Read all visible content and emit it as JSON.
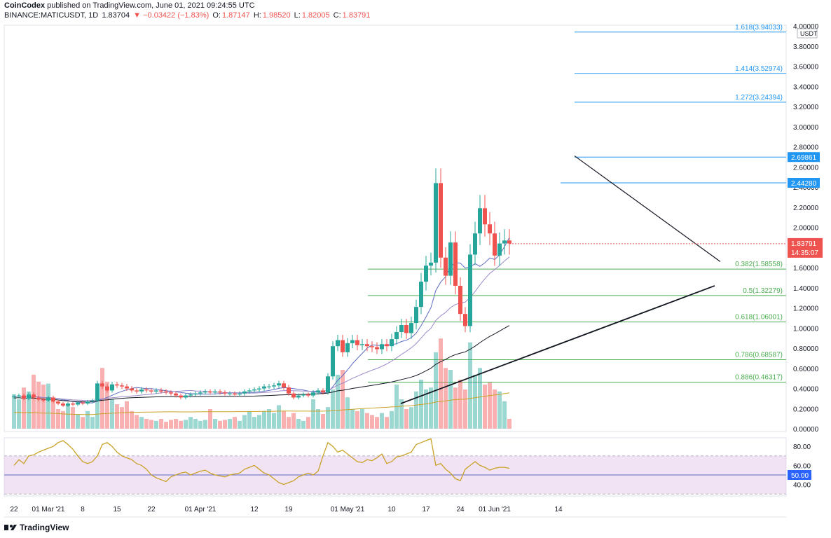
{
  "header": {
    "publisher": "CoinCodex",
    "published_text": "published on TradingView.com, June 01, 2021 09:24:55 UTC",
    "symbol": "BINANCE:MATICUSDT, 1D",
    "last": "1.83704",
    "change": "▼ −0.03422 (−1.83%)",
    "o_label": "O:",
    "o": "1.87147",
    "h_label": "H:",
    "h": "1.98520",
    "l_label": "L:",
    "l": "1.82005",
    "c_label": "C:",
    "c": "1.83791"
  },
  "footer": {
    "brand": "TradingView"
  },
  "colors": {
    "up": "#26a69a",
    "down": "#ef5350",
    "fib_blue": "#2196f3",
    "fib_green": "#4caf50",
    "rsi": "#c9a227",
    "rsi_band": "#e1bee7",
    "ma_short": "#5c6bc0",
    "ma_long": "#9c89c9"
  },
  "chart_data": {
    "type": "candlestick",
    "price_unit": "USDT",
    "y_ticks": [
      "4.00000",
      "3.80000",
      "3.60000",
      "3.40000",
      "3.20000",
      "3.00000",
      "2.80000",
      "2.60000",
      "2.40000",
      "2.20000",
      "2.00000",
      "1.80000",
      "1.60000",
      "1.40000",
      "1.20000",
      "1.00000",
      "0.80000",
      "0.60000",
      "0.40000",
      "0.20000",
      "0.00000"
    ],
    "y_tick_values": [
      4.0,
      3.8,
      3.6,
      3.4,
      3.2,
      3.0,
      2.8,
      2.6,
      2.4,
      2.2,
      2.0,
      1.8,
      1.6,
      1.4,
      1.2,
      1.0,
      0.8,
      0.6,
      0.4,
      0.2,
      0.0
    ],
    "ylim": [
      0.0,
      4.0
    ],
    "x_ticks": [
      {
        "label": "22",
        "day": 0
      },
      {
        "label": "01 Mar '21",
        "day": 7
      },
      {
        "label": "8",
        "day": 14
      },
      {
        "label": "15",
        "day": 21
      },
      {
        "label": "22",
        "day": 28
      },
      {
        "label": "01 Apr '21",
        "day": 38
      },
      {
        "label": "12",
        "day": 49
      },
      {
        "label": "19",
        "day": 56
      },
      {
        "label": "01 May '21",
        "day": 68
      },
      {
        "label": "10",
        "day": 77
      },
      {
        "label": "17",
        "day": 84
      },
      {
        "label": "24",
        "day": 91
      },
      {
        "label": "01 Jun '21",
        "day": 98
      },
      {
        "label": "14",
        "day": 111
      }
    ],
    "closes": [
      0.32,
      0.33,
      0.3,
      0.34,
      0.31,
      0.29,
      0.28,
      0.31,
      0.27,
      0.25,
      0.23,
      0.25,
      0.24,
      0.26,
      0.25,
      0.27,
      0.28,
      0.45,
      0.42,
      0.38,
      0.44,
      0.43,
      0.42,
      0.4,
      0.38,
      0.37,
      0.39,
      0.38,
      0.37,
      0.38,
      0.37,
      0.36,
      0.35,
      0.33,
      0.31,
      0.33,
      0.34,
      0.35,
      0.36,
      0.37,
      0.36,
      0.37,
      0.36,
      0.35,
      0.35,
      0.34,
      0.35,
      0.37,
      0.38,
      0.39,
      0.4,
      0.42,
      0.42,
      0.43,
      0.45,
      0.41,
      0.35,
      0.31,
      0.33,
      0.34,
      0.33,
      0.36,
      0.38,
      0.36,
      0.52,
      0.82,
      0.88,
      0.76,
      0.85,
      0.88,
      0.83,
      0.84,
      0.82,
      0.81,
      0.79,
      0.84,
      0.82,
      0.89,
      0.96,
      1.03,
      0.95,
      1.05,
      1.21,
      1.46,
      1.62,
      1.65,
      2.44,
      1.7,
      1.52,
      1.85,
      1.42,
      1.14,
      1.02,
      1.73,
      1.94,
      2.19,
      2.03,
      1.94,
      1.72,
      1.84,
      1.87,
      1.84
    ],
    "open_series_note": "open = previous close",
    "highlighted_price": "1.83791",
    "countdown": "14:35:07",
    "fib_levels": [
      {
        "label": "1.618(3.94033)",
        "value": 3.94033,
        "color": "blue",
        "tag": false
      },
      {
        "label": "1.414(3.52974)",
        "value": 3.52974,
        "color": "blue",
        "tag": false
      },
      {
        "label": "1.272(3.24394)",
        "value": 3.24394,
        "color": "blue",
        "tag": false
      },
      {
        "label": "2.69861",
        "value": 2.69861,
        "color": "blue",
        "tag": true
      },
      {
        "label": "2.44280",
        "value": 2.4428,
        "color": "blue",
        "tag": true
      },
      {
        "label": "0.382(1.58558)",
        "value": 1.58558,
        "color": "green",
        "tag": false
      },
      {
        "label": "0.5(1.32279)",
        "value": 1.32279,
        "color": "green",
        "tag": false
      },
      {
        "label": "0.618(1.06001)",
        "value": 1.06001,
        "color": "green",
        "tag": false
      },
      {
        "label": "0.786(0.68587)",
        "value": 0.68587,
        "color": "green",
        "tag": false
      },
      {
        "label": "0.886(0.46317)",
        "value": 0.46317,
        "color": "green",
        "tag": false
      }
    ],
    "rsi": {
      "ticks": [
        "80.00",
        "60.00",
        "40.00"
      ],
      "tick_values": [
        80,
        60,
        40
      ],
      "midline_label": "50.00",
      "band": [
        30,
        70
      ],
      "values": [
        60,
        66,
        62,
        70,
        71,
        74,
        76,
        78,
        80,
        84,
        86,
        82,
        77,
        70,
        64,
        62,
        64,
        70,
        82,
        84,
        80,
        74,
        70,
        68,
        66,
        62,
        60,
        56,
        50,
        47,
        45,
        43,
        48,
        50,
        52,
        53,
        50,
        52,
        54,
        55,
        52,
        50,
        49,
        48,
        50,
        51,
        52,
        56,
        58,
        60,
        56,
        52,
        50,
        46,
        42,
        40,
        42,
        44,
        48,
        50,
        52,
        50,
        54,
        70,
        84,
        80,
        74,
        76,
        72,
        68,
        64,
        63,
        66,
        65,
        68,
        72,
        62,
        64,
        69,
        70,
        72,
        74,
        82,
        84,
        86,
        88,
        60,
        62,
        56,
        52,
        46,
        44,
        56,
        60,
        64,
        60,
        58,
        55,
        57,
        58,
        58,
        57
      ]
    },
    "volume_relative": [
      0.35,
      0.3,
      0.42,
      0.38,
      0.55,
      0.48,
      0.45,
      0.46,
      0.3,
      0.2,
      0.18,
      0.25,
      0.22,
      0.15,
      0.12,
      0.18,
      0.12,
      0.4,
      0.62,
      0.48,
      0.3,
      0.25,
      0.22,
      0.28,
      0.18,
      0.14,
      0.12,
      0.1,
      0.09,
      0.08,
      0.1,
      0.07,
      0.09,
      0.1,
      0.08,
      0.09,
      0.12,
      0.1,
      0.08,
      0.09,
      0.2,
      0.1,
      0.08,
      0.09,
      0.1,
      0.12,
      0.08,
      0.14,
      0.18,
      0.12,
      0.14,
      0.18,
      0.2,
      0.16,
      0.24,
      0.18,
      0.12,
      0.16,
      0.1,
      0.08,
      0.12,
      0.3,
      0.2,
      0.15,
      0.22,
      0.4,
      0.55,
      0.6,
      0.32,
      0.2,
      0.18,
      0.2,
      0.16,
      0.14,
      0.12,
      0.16,
      0.12,
      0.18,
      0.45,
      0.3,
      0.2,
      0.22,
      0.38,
      0.5,
      0.4,
      0.42,
      0.78,
      0.92,
      0.62,
      0.6,
      0.42,
      0.5,
      0.4,
      0.88,
      0.55,
      0.62,
      0.45,
      0.47,
      0.4,
      0.38,
      0.28,
      0.1
    ]
  }
}
